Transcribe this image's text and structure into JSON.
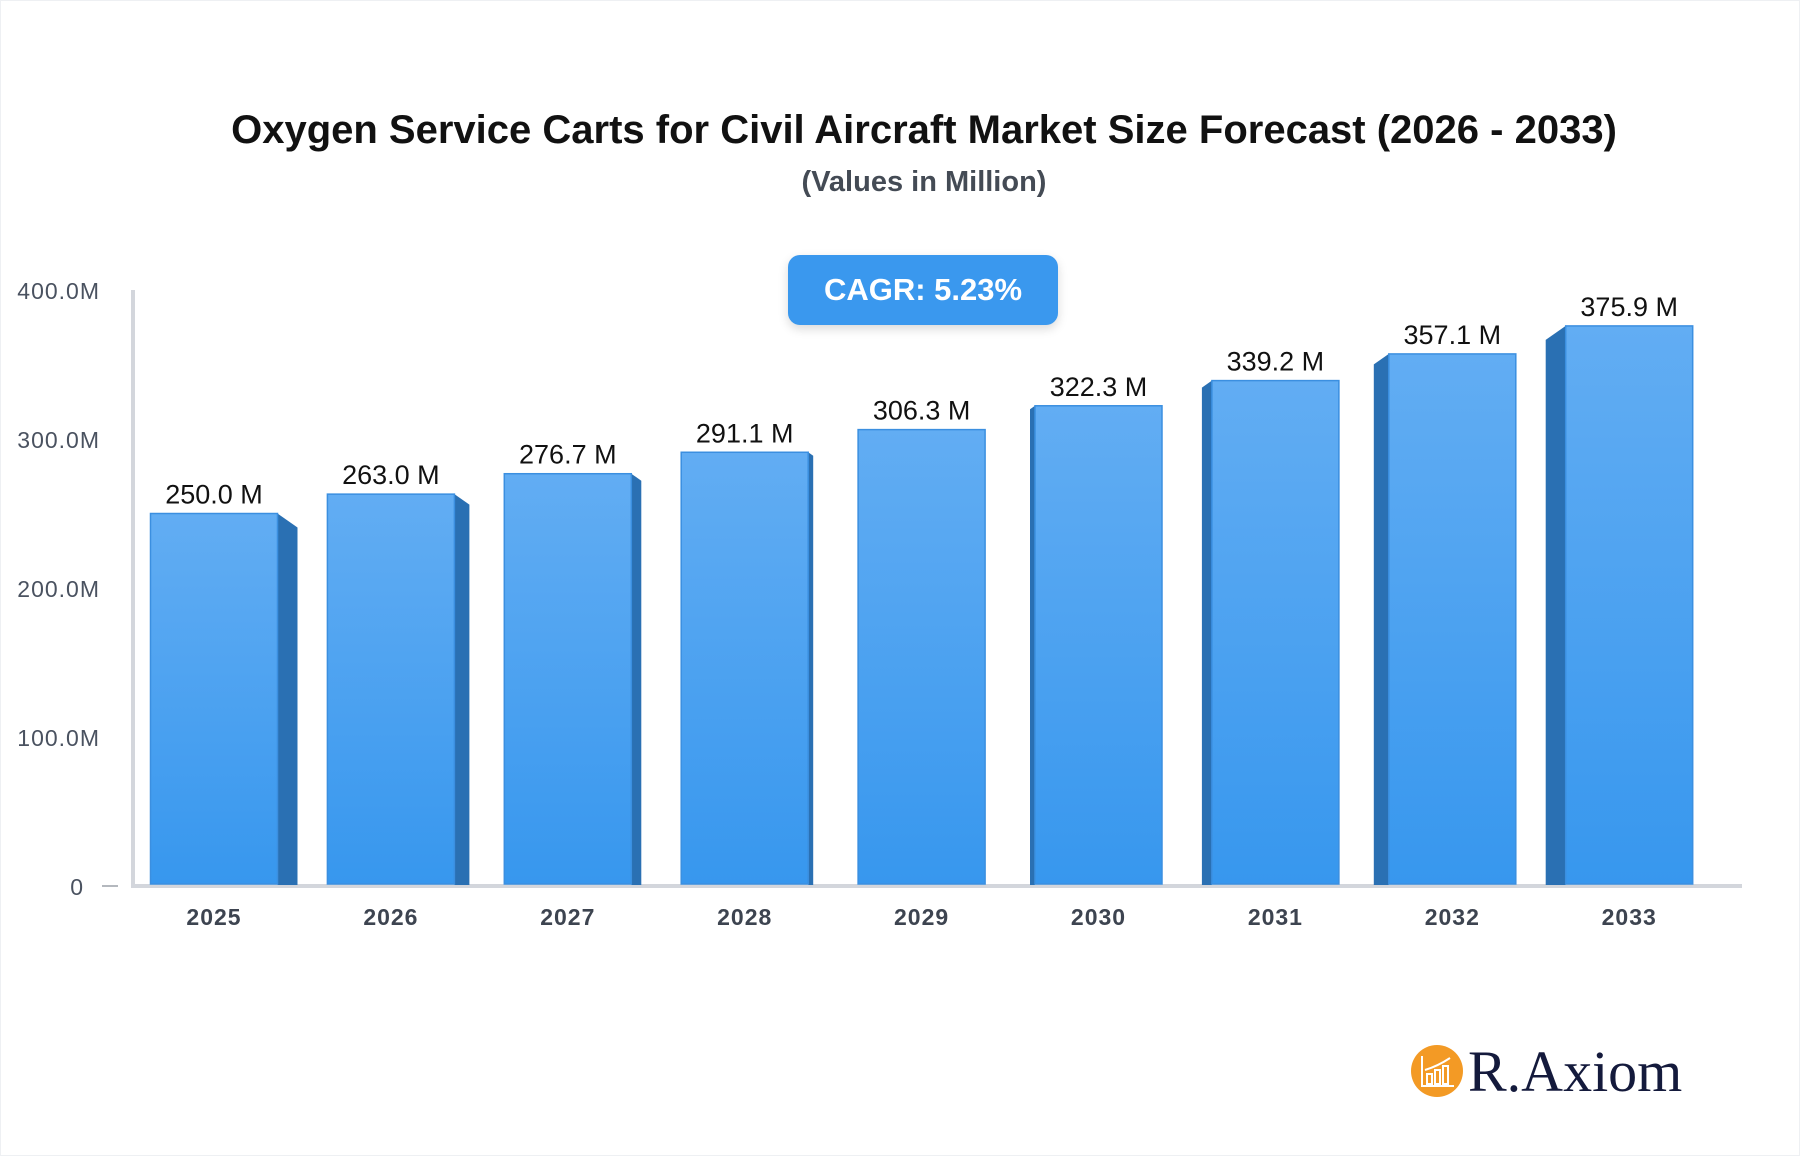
{
  "chart_data": {
    "type": "bar",
    "title": "Oxygen Service Carts for Civil Aircraft Market Size Forecast (2026 - 2033)",
    "subtitle": "(Values in Million)",
    "annotation": "CAGR: 5.23%",
    "categories": [
      "2025",
      "2026",
      "2027",
      "2028",
      "2029",
      "2030",
      "2031",
      "2032",
      "2033"
    ],
    "values": [
      250.0,
      263.0,
      276.7,
      291.1,
      306.3,
      322.3,
      339.2,
      357.1,
      375.9
    ],
    "data_labels": [
      "250.0 M",
      "263.0 M",
      "276.7 M",
      "291.1 M",
      "306.3 M",
      "322.3 M",
      "339.2 M",
      "357.1 M",
      "375.9 M"
    ],
    "yticks": [
      0,
      100,
      200,
      300,
      400
    ],
    "ytick_labels": [
      "0",
      "100.0M",
      "200.0M",
      "300.0M",
      "400.0M"
    ],
    "ylim": [
      0,
      400
    ],
    "xlabel": "",
    "ylabel": "",
    "grid": false,
    "colors": {
      "bar_top": "#62adf3",
      "bar_bottom": "#3797ee",
      "bar_side": "#2a70b3",
      "badge": "#3a98ee"
    }
  },
  "brand": {
    "name": "R.Axiom",
    "icon": "bar-chart-growth-icon",
    "color": "#f39a25"
  }
}
